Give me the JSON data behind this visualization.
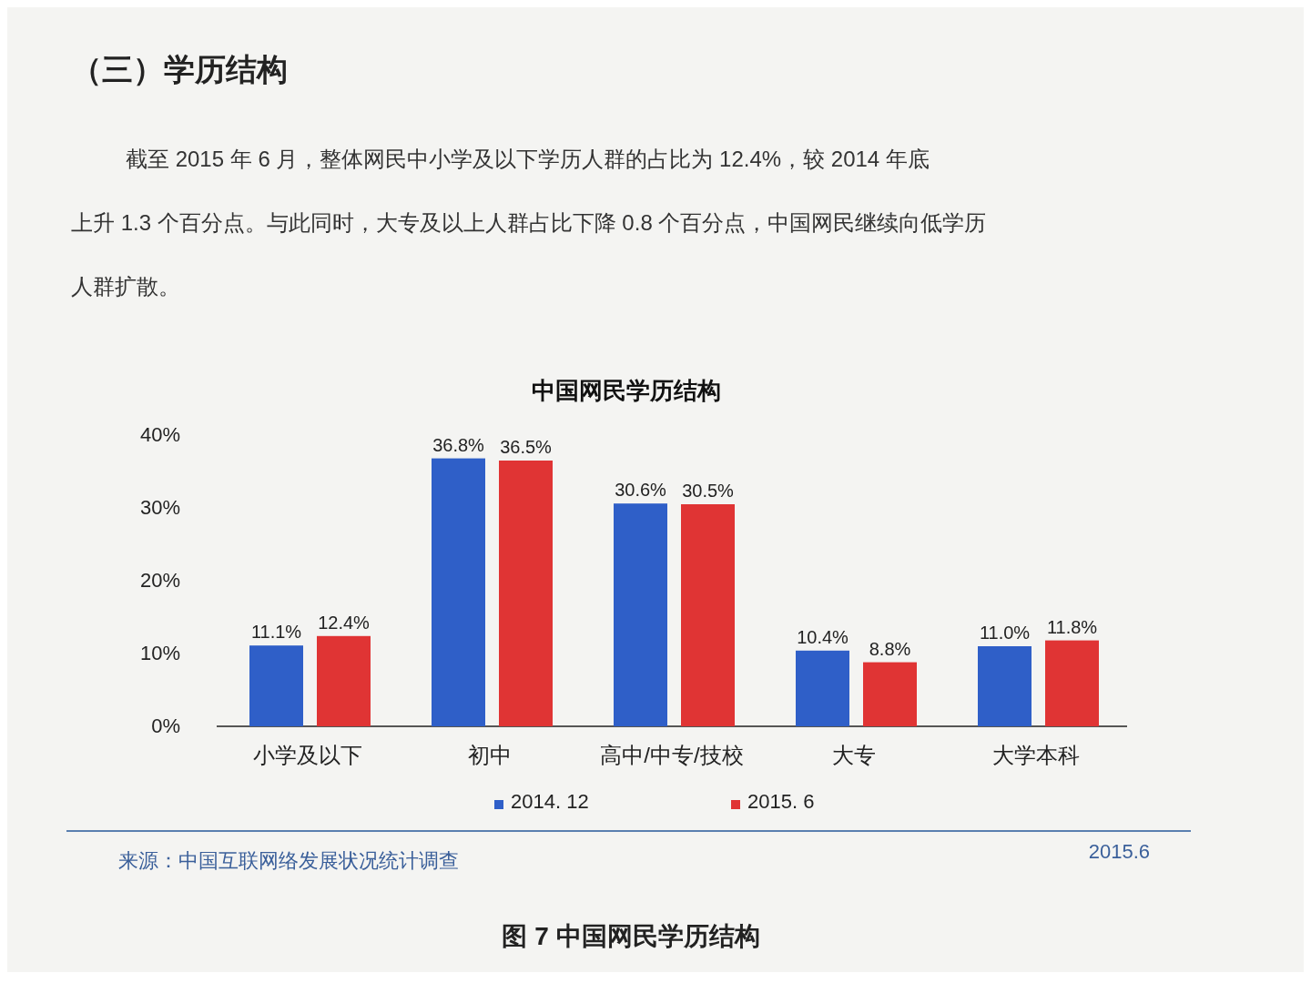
{
  "chart_data": {
    "type": "bar",
    "title": "中国网民学历结构",
    "categories": [
      "小学及以下",
      "初中",
      "高中/中专/技校",
      "大专",
      "大学本科"
    ],
    "series": [
      {
        "name": "2014. 12",
        "color": "#2f5fc8",
        "values": [
          11.1,
          36.8,
          30.6,
          10.4,
          11.0
        ],
        "value_labels": [
          "11.1%",
          "36.8%",
          "30.6%",
          "10.4%",
          "11.0%"
        ]
      },
      {
        "name": "2015. 6",
        "color": "#e03434",
        "values": [
          12.4,
          36.5,
          30.5,
          8.8,
          11.8
        ],
        "value_labels": [
          "12.4%",
          "36.5%",
          "30.5%",
          "8.8%",
          "11.8%"
        ]
      }
    ],
    "ylim": [
      0,
      40
    ],
    "yticks": [
      {
        "value": 0,
        "label": "0%"
      },
      {
        "value": 10,
        "label": "10%"
      },
      {
        "value": 20,
        "label": "20%"
      },
      {
        "value": 30,
        "label": "30%"
      },
      {
        "value": 40,
        "label": "40%"
      }
    ],
    "legend": "bottom",
    "grid": false,
    "annotations": [
      "（三）学历结构",
      "截至 2015 年 6 月，整体网民中小学及以下学历人群的占比为 12.4%，较 2014 年底上升 1.3 个百分点。与此同时，大专及以上人群占比下降 0.8 个百分点，中国网民继续向低学历人群扩散。",
      "来源：中国互联网络发展状况统计调查",
      "2015.6",
      "图 7 中国网民学历结构"
    ]
  }
}
